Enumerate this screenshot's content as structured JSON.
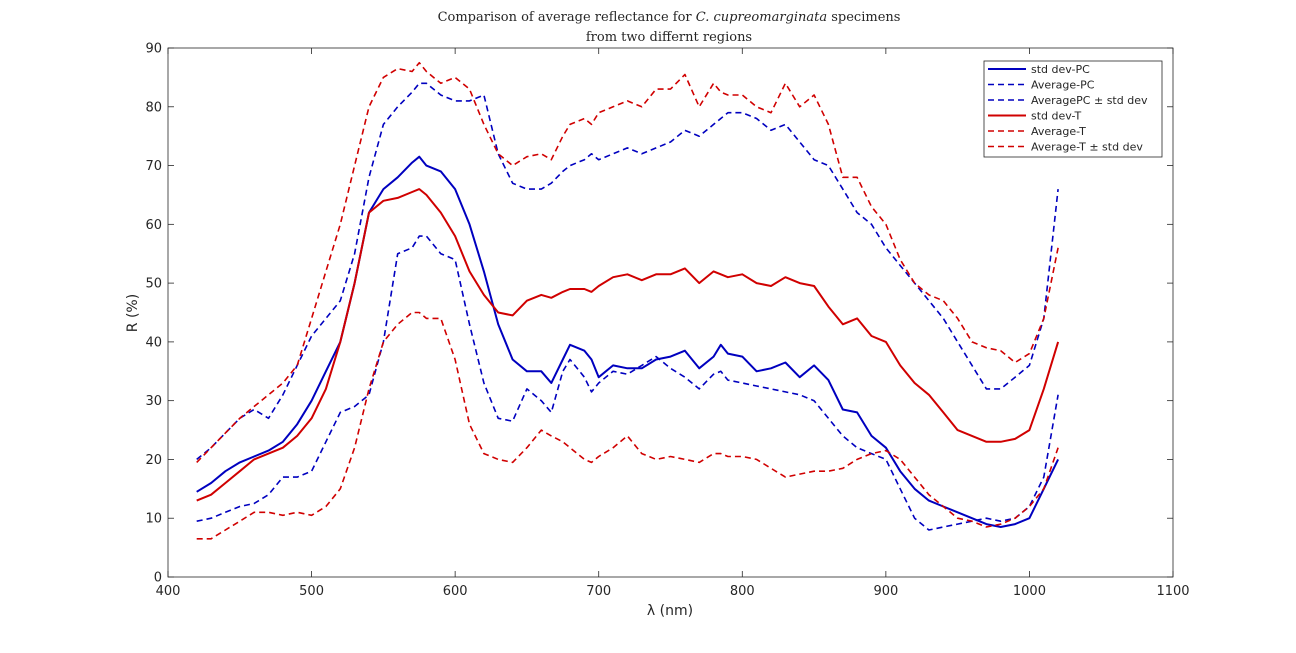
{
  "chart_data": {
    "type": "line",
    "title_line1_pre": "Comparison of average reflectance for ",
    "title_line1_italic": "C. cupreomarginata",
    "title_line1_post": " specimens",
    "title_line2": "from two differnt regions",
    "xlabel": "λ (nm)",
    "ylabel": "R (%)",
    "xlim": [
      400,
      1100
    ],
    "ylim": [
      0,
      90
    ],
    "xticks": [
      400,
      500,
      600,
      700,
      800,
      900,
      1000,
      1100
    ],
    "yticks": [
      0,
      10,
      20,
      30,
      40,
      50,
      60,
      70,
      80,
      90
    ],
    "grid": false,
    "legend_position": "top-right",
    "series": [
      {
        "name": "std dev-PC",
        "color": "#0000bf",
        "style": "solid",
        "width": 2,
        "x": [
          420,
          430,
          440,
          450,
          460,
          470,
          480,
          490,
          500,
          510,
          520,
          530,
          540,
          550,
          560,
          570,
          575,
          580,
          590,
          600,
          610,
          620,
          630,
          640,
          650,
          660,
          667,
          675,
          680,
          690,
          695,
          700,
          710,
          720,
          730,
          740,
          750,
          760,
          770,
          780,
          785,
          790,
          800,
          810,
          820,
          830,
          840,
          850,
          860,
          870,
          880,
          890,
          900,
          910,
          920,
          930,
          940,
          950,
          960,
          970,
          980,
          990,
          1000,
          1010,
          1020
        ],
        "y": [
          14.5,
          16,
          18,
          19.5,
          20.5,
          21.5,
          23,
          26,
          30,
          35,
          40,
          50,
          62,
          66,
          68,
          70.5,
          71.5,
          70,
          69,
          66,
          60,
          52,
          43,
          37,
          35,
          35,
          33,
          37,
          39.5,
          38.5,
          37,
          34,
          36,
          35.5,
          35.5,
          37,
          37.5,
          38.5,
          35.5,
          37.5,
          39.5,
          38,
          37.5,
          35,
          35.5,
          36.5,
          34,
          36,
          33.5,
          28.5,
          28,
          24,
          22,
          18,
          15,
          13,
          12,
          11,
          10,
          9,
          8.5,
          9,
          10,
          15,
          20
        ]
      },
      {
        "name": "Average-PC",
        "color": "#0000bf",
        "style": "dashed",
        "width": 1.6,
        "x": [
          420,
          430,
          440,
          450,
          460,
          470,
          480,
          490,
          500,
          510,
          520,
          530,
          540,
          550,
          560,
          570,
          575,
          580,
          590,
          600,
          610,
          620,
          630,
          640,
          650,
          660,
          667,
          675,
          680,
          690,
          695,
          700,
          710,
          720,
          730,
          740,
          750,
          760,
          770,
          780,
          785,
          790,
          800,
          810,
          820,
          830,
          840,
          850,
          860,
          870,
          880,
          890,
          900,
          910,
          920,
          930,
          940,
          950,
          960,
          970,
          980,
          990,
          1000,
          1010,
          1020
        ],
        "y": [
          20,
          22,
          24.5,
          27,
          28.5,
          27,
          31,
          36,
          41,
          44,
          47,
          55,
          68,
          77,
          80,
          82.5,
          84,
          84,
          82,
          81,
          81,
          82,
          72,
          67,
          66,
          66,
          67,
          69,
          70,
          71,
          72,
          71,
          72,
          73,
          72,
          73,
          74,
          76,
          75,
          77,
          78,
          79,
          79,
          78,
          76,
          77,
          74,
          71,
          70,
          66,
          62,
          60,
          56,
          53,
          50,
          47,
          44,
          40,
          36,
          32,
          32,
          34,
          36,
          44,
          66
        ]
      },
      {
        "name": "AveragePC ± std dev",
        "color": "#0000bf",
        "style": "dashed",
        "width": 1.6,
        "x": [
          420,
          430,
          440,
          450,
          460,
          470,
          480,
          490,
          500,
          510,
          520,
          530,
          540,
          550,
          560,
          570,
          575,
          580,
          590,
          600,
          610,
          620,
          630,
          640,
          650,
          660,
          667,
          675,
          680,
          690,
          695,
          700,
          710,
          720,
          730,
          740,
          750,
          760,
          770,
          780,
          785,
          790,
          800,
          810,
          820,
          830,
          840,
          850,
          860,
          870,
          880,
          890,
          900,
          910,
          920,
          930,
          940,
          950,
          960,
          970,
          980,
          990,
          1000,
          1010,
          1020
        ],
        "y": [
          9.5,
          10,
          11,
          12,
          12.5,
          14,
          17,
          17,
          18,
          23,
          28,
          29,
          31,
          40,
          55,
          56,
          58,
          58,
          55,
          54,
          43,
          33,
          27,
          26.5,
          32,
          30,
          28,
          35,
          37,
          34,
          31.5,
          33,
          35,
          34.5,
          36,
          37.5,
          35.5,
          34,
          32,
          34.5,
          35,
          33.5,
          33,
          32.5,
          32,
          31.5,
          31,
          30,
          27,
          24,
          22,
          21,
          20,
          15,
          10,
          8,
          8.5,
          9,
          9.5,
          10,
          9.5,
          10,
          12,
          17,
          31
        ]
      },
      {
        "name": "std dev-T",
        "color": "#d00000",
        "style": "solid",
        "width": 2,
        "x": [
          420,
          430,
          440,
          450,
          460,
          470,
          480,
          490,
          500,
          510,
          520,
          530,
          540,
          550,
          560,
          570,
          575,
          580,
          590,
          600,
          610,
          620,
          630,
          640,
          650,
          660,
          667,
          675,
          680,
          690,
          695,
          700,
          710,
          720,
          730,
          740,
          750,
          760,
          770,
          780,
          785,
          790,
          800,
          810,
          820,
          830,
          840,
          850,
          860,
          870,
          880,
          890,
          900,
          910,
          920,
          930,
          940,
          950,
          960,
          970,
          980,
          990,
          1000,
          1010,
          1020
        ],
        "y": [
          13,
          14,
          16,
          18,
          20,
          21,
          22,
          24,
          27,
          32,
          40,
          50,
          62,
          64,
          64.5,
          65.5,
          66,
          65,
          62,
          58,
          52,
          48,
          45,
          44.5,
          47,
          48,
          47.5,
          48.5,
          49,
          49,
          48.5,
          49.5,
          51,
          51.5,
          50.5,
          51.5,
          51.5,
          52.5,
          50,
          52,
          51.5,
          51,
          51.5,
          50,
          49.5,
          51,
          50,
          49.5,
          46,
          43,
          44,
          41,
          40,
          36,
          33,
          31,
          28,
          25,
          24,
          23,
          23,
          23.5,
          25,
          32,
          40
        ]
      },
      {
        "name": "Average-T",
        "color": "#d00000",
        "style": "dashed",
        "width": 1.6,
        "x": [
          420,
          430,
          440,
          450,
          460,
          470,
          480,
          490,
          500,
          510,
          520,
          530,
          540,
          550,
          560,
          570,
          575,
          580,
          590,
          600,
          610,
          620,
          630,
          640,
          650,
          660,
          667,
          675,
          680,
          690,
          695,
          700,
          710,
          720,
          730,
          740,
          750,
          760,
          770,
          780,
          785,
          790,
          800,
          810,
          820,
          830,
          840,
          850,
          860,
          870,
          880,
          890,
          900,
          910,
          920,
          930,
          940,
          950,
          960,
          970,
          980,
          990,
          1000,
          1010,
          1020
        ],
        "y": [
          19.5,
          22,
          24.5,
          27,
          29,
          31,
          33,
          36,
          44,
          52,
          60,
          70,
          80,
          85,
          86.5,
          86,
          87.5,
          86,
          84,
          85,
          83,
          77,
          72,
          70,
          71.5,
          72,
          71,
          75,
          77,
          78,
          77,
          79,
          80,
          81,
          80,
          83,
          83,
          85.5,
          80,
          84,
          82.5,
          82,
          82,
          80,
          79,
          84,
          80,
          82,
          77,
          68,
          68,
          63,
          60,
          54,
          50,
          48,
          47,
          44,
          40,
          39,
          38.5,
          36.5,
          38,
          44,
          56
        ]
      },
      {
        "name": "Average-T ± std dev",
        "color": "#d00000",
        "style": "dashed",
        "width": 1.6,
        "x": [
          420,
          430,
          440,
          450,
          460,
          470,
          480,
          490,
          500,
          510,
          520,
          530,
          540,
          550,
          560,
          570,
          575,
          580,
          590,
          600,
          610,
          620,
          630,
          640,
          650,
          660,
          667,
          675,
          680,
          690,
          695,
          700,
          710,
          720,
          730,
          740,
          750,
          760,
          770,
          780,
          785,
          790,
          800,
          810,
          820,
          830,
          840,
          850,
          860,
          870,
          880,
          890,
          900,
          910,
          920,
          930,
          940,
          950,
          960,
          970,
          980,
          990,
          1000,
          1010,
          1020
        ],
        "y": [
          6.5,
          6.5,
          8,
          9.5,
          11,
          11,
          10.5,
          11,
          10.5,
          12,
          15,
          22,
          32,
          40,
          43,
          45,
          45,
          44,
          44,
          37,
          26,
          21,
          20,
          19.5,
          22,
          25,
          24,
          23,
          22,
          20,
          19.5,
          20.5,
          22,
          24,
          21,
          20,
          20.5,
          20,
          19.5,
          21,
          21,
          20.5,
          20.5,
          20,
          18.5,
          17,
          17.5,
          18,
          18,
          18.5,
          20,
          21,
          21.5,
          20,
          17,
          14,
          12,
          10,
          9.5,
          8.5,
          9,
          10,
          12,
          15,
          22
        ]
      }
    ]
  }
}
